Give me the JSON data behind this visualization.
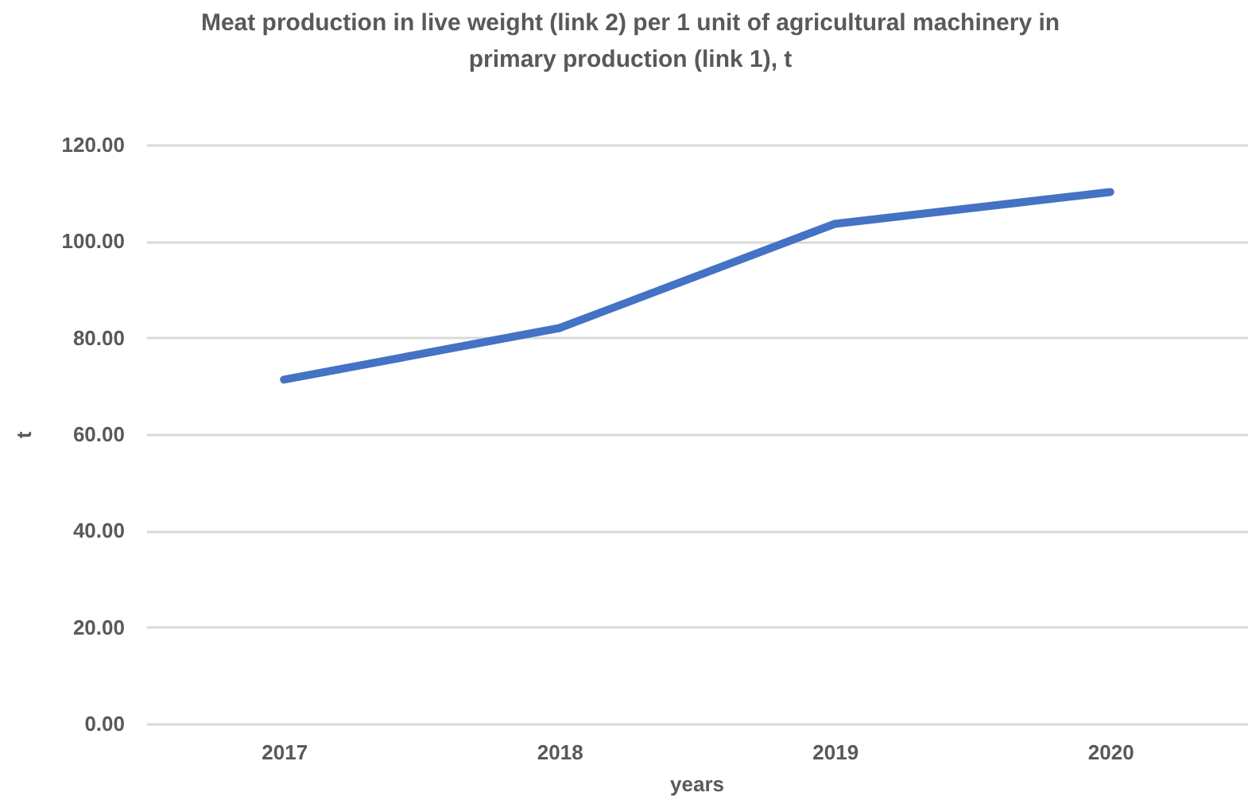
{
  "chart_data": {
    "type": "line",
    "title": "Meat production in live weight (link 2) per 1 unit of agricultural machinery in primary production (link 1), t",
    "xlabel": "years",
    "ylabel": "t",
    "categories": [
      "2017",
      "2018",
      "2019",
      "2020"
    ],
    "series": [
      {
        "color": "#4472c4",
        "values": [
          71.3,
          82.0,
          103.6,
          110.2
        ]
      }
    ],
    "ylim": [
      0,
      120
    ],
    "yticks": [
      {
        "value": 0,
        "label": "0.00"
      },
      {
        "value": 20,
        "label": "20.00"
      },
      {
        "value": 40,
        "label": "40.00"
      },
      {
        "value": 60,
        "label": "60.00"
      },
      {
        "value": 80,
        "label": "80.00"
      },
      {
        "value": 100,
        "label": "100.00"
      },
      {
        "value": 120,
        "label": "120.00"
      }
    ],
    "grid": "y"
  }
}
